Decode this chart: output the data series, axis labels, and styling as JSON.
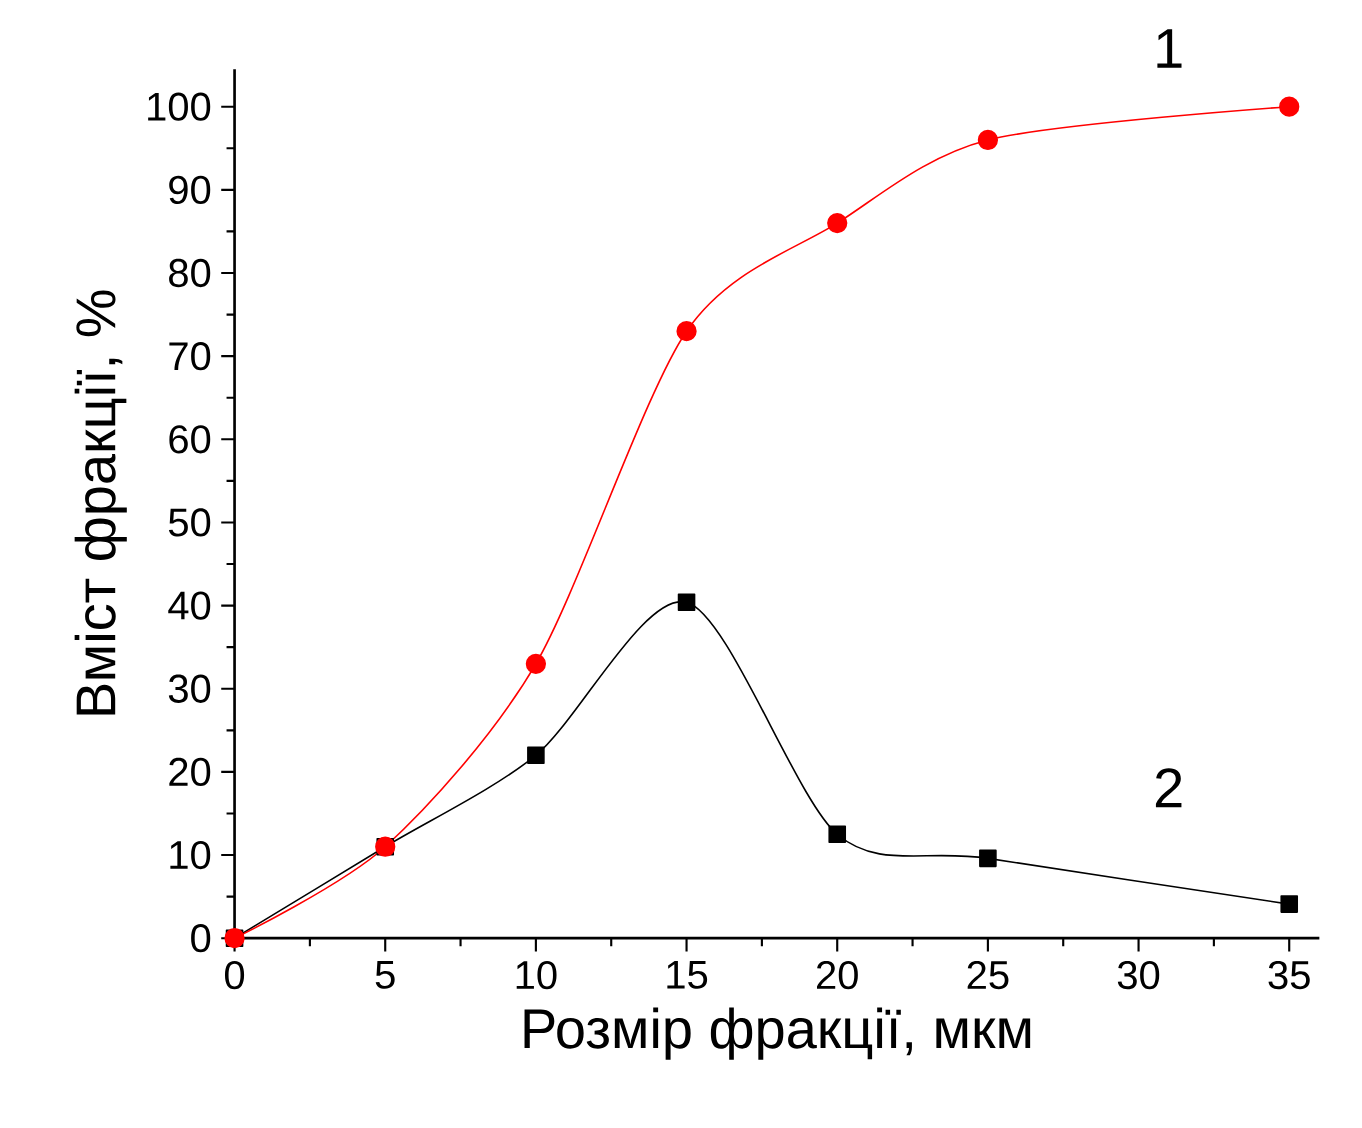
{
  "chart_data": {
    "type": "line",
    "xlabel": "Розмір фракції, мкм",
    "ylabel": "Вміст фракції, %",
    "x": [
      0,
      5,
      10,
      15,
      20,
      25,
      35
    ],
    "series": [
      {
        "name": "1",
        "color": "#ff0000",
        "marker": "circle",
        "values": [
          0,
          11,
          33,
          73,
          86,
          96,
          100
        ]
      },
      {
        "name": "2",
        "color": "#000000",
        "marker": "square",
        "values": [
          0,
          11,
          22,
          40.4,
          12.5,
          9.6,
          4.1
        ]
      }
    ],
    "xlim": [
      0,
      36
    ],
    "ylim": [
      0,
      104.5
    ],
    "xticks": [
      0,
      5,
      10,
      15,
      20,
      25,
      30,
      35
    ],
    "yticks": [
      0,
      10,
      20,
      30,
      40,
      50,
      60,
      70,
      80,
      90,
      100
    ],
    "grid": false,
    "legend": false
  }
}
